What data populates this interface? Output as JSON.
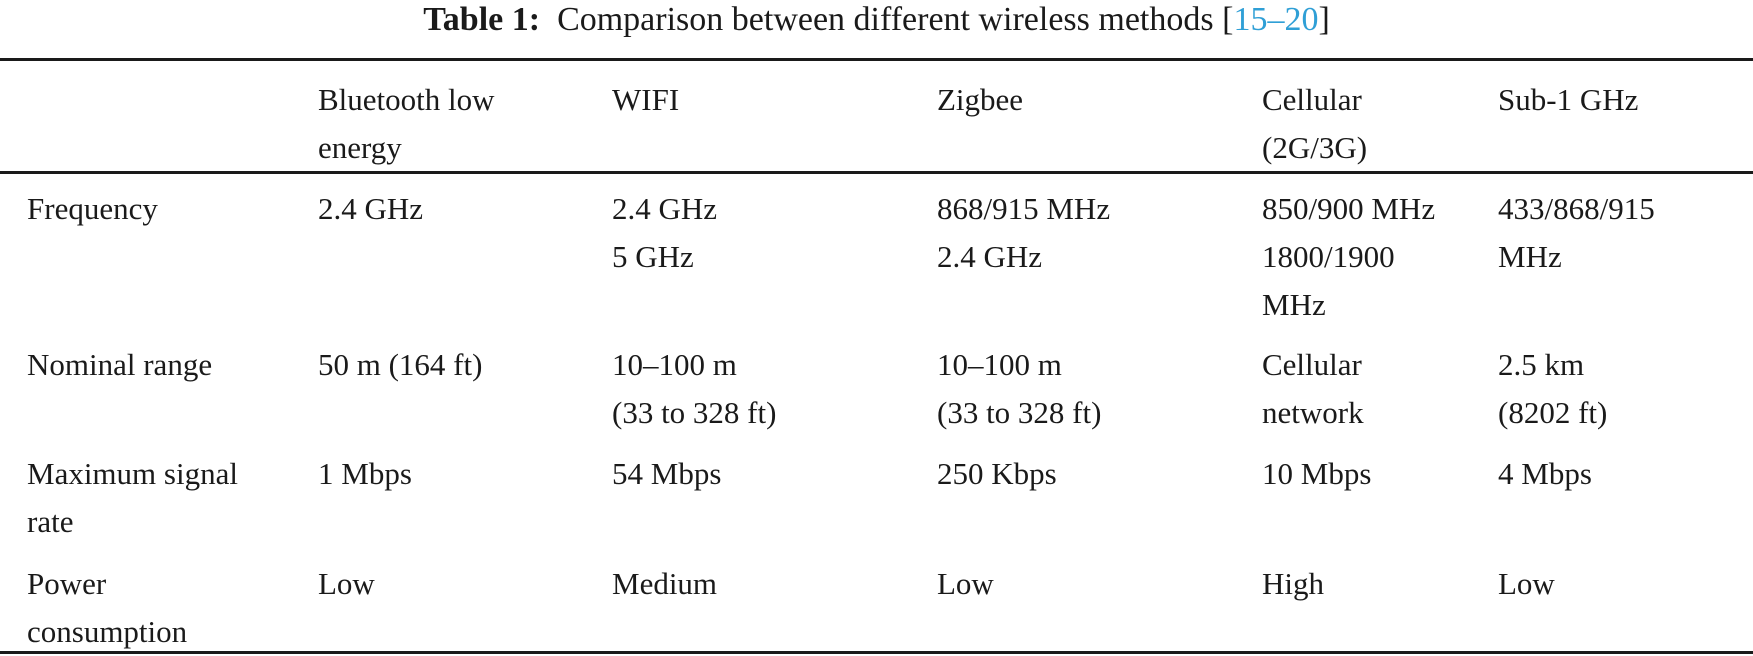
{
  "caption": {
    "label": "Table 1:",
    "text": "Comparison between different wireless methods [",
    "ref_start": "15",
    "ref_dash": "–",
    "ref_end": "20",
    "close": "]"
  },
  "table": {
    "header": [
      [],
      [
        "Bluetooth low",
        "energy"
      ],
      [
        "WIFI"
      ],
      [
        "Zigbee"
      ],
      [
        "Cellular",
        "(2G/3G)"
      ],
      [
        "Sub-1 GHz"
      ]
    ],
    "rows": [
      {
        "label": [
          "Frequency"
        ],
        "cells": [
          [
            "2.4 GHz"
          ],
          [
            "2.4 GHz",
            "5 GHz"
          ],
          [
            "868/915 MHz",
            "2.4 GHz"
          ],
          [
            "850/900 MHz",
            "1800/1900",
            "MHz"
          ],
          [
            "433/868/915",
            "MHz"
          ]
        ]
      },
      {
        "label": [
          "Nominal range"
        ],
        "cells": [
          [
            "50 m (164 ft)"
          ],
          [
            "10–100 m",
            "(33 to 328 ft)"
          ],
          [
            "10–100 m",
            "(33 to 328 ft)"
          ],
          [
            "Cellular",
            "network"
          ],
          [
            "2.5 km",
            "(8202 ft)"
          ]
        ]
      },
      {
        "label": [
          "Maximum signal",
          "rate"
        ],
        "cells": [
          [
            "1 Mbps"
          ],
          [
            "54 Mbps"
          ],
          [
            "250 Kbps"
          ],
          [
            "10 Mbps"
          ],
          [
            "4 Mbps"
          ]
        ]
      },
      {
        "label": [
          "Power",
          "consumption"
        ],
        "cells": [
          [
            "Low"
          ],
          [
            "Medium"
          ],
          [
            "Low"
          ],
          [
            "High"
          ],
          [
            "Low"
          ]
        ]
      }
    ]
  }
}
